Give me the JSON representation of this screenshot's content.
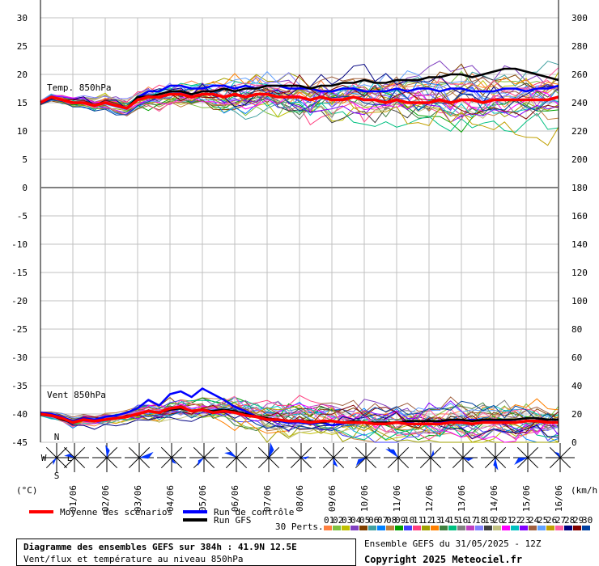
{
  "chart_data": {
    "type": "line",
    "location": "Diagramme des ensembles GEFS sur 384h : 41.9N 12.5E",
    "description": "Vent/flux et température au niveau 850hPa",
    "run": "Ensemble GEFS du 31/05/2025 - 12Z",
    "copyright": "Copyright 2025 Meteociel.fr",
    "x_labels": [
      "01/06",
      "02/06",
      "03/06",
      "04/06",
      "05/06",
      "06/06",
      "07/06",
      "08/06",
      "09/06",
      "10/06",
      "11/06",
      "12/06",
      "13/06",
      "14/06",
      "15/06",
      "16/06"
    ],
    "left_unit": "(°C)",
    "right_unit": "(km/h)",
    "left_ticks": [
      "30",
      "25",
      "20",
      "15",
      "10",
      "5",
      "0",
      "-5",
      "-10",
      "-15",
      "-20",
      "-25",
      "-30",
      "-35",
      "-40",
      "-45"
    ],
    "right_ticks": [
      "300",
      "280",
      "260",
      "240",
      "220",
      "200",
      "180",
      "160",
      "140",
      "120",
      "100",
      "80",
      "60",
      "40",
      "20",
      "0"
    ],
    "temp_panel": {
      "label": "Temp. 850hPa",
      "mean": [
        15,
        16,
        15.5,
        15,
        15,
        14.5,
        15,
        14.5,
        14,
        15.5,
        16,
        16,
        16.5,
        16.5,
        16,
        16.5,
        16.5,
        16,
        16.5,
        16,
        16.5,
        16.5,
        16,
        16,
        16,
        15.5,
        16,
        15.5,
        15.5,
        16,
        15.5,
        15.5,
        15,
        15.5,
        15,
        15,
        15,
        15.5,
        15,
        15.5,
        15.5,
        15,
        15.5,
        15.5,
        15.5,
        15.5,
        15.5,
        15.5,
        16
      ],
      "control": [
        15,
        16,
        15.5,
        15,
        15,
        14.5,
        15,
        14.5,
        14,
        16,
        17,
        17,
        18,
        18,
        17.5,
        17.5,
        18,
        18,
        17.5,
        18,
        17.5,
        18,
        18,
        17.5,
        17.5,
        17.5,
        17,
        17,
        17.5,
        17.5,
        17,
        17,
        17,
        17.5,
        17,
        17.5,
        17.5,
        17,
        17.5,
        17.5,
        17,
        17,
        17,
        17.5,
        17.5,
        17,
        17.5,
        17.5,
        18
      ],
      "gfs": [
        15,
        16,
        15.5,
        15,
        15,
        14.5,
        15,
        14.5,
        14,
        16,
        16,
        16.5,
        17,
        17,
        16.5,
        17,
        17,
        17.5,
        17,
        17.5,
        17.5,
        18,
        18,
        18,
        18,
        17.5,
        18,
        18,
        18.5,
        18.5,
        19,
        18.5,
        18.5,
        19,
        19,
        19,
        19.5,
        19.5,
        20,
        20,
        19.5,
        20,
        20.5,
        21,
        21,
        20.5,
        20,
        19.5,
        19
      ]
    },
    "wind_panel": {
      "label": "Vent 850hPa",
      "mean": [
        20,
        19,
        17,
        14,
        16,
        15,
        16,
        17,
        18,
        20,
        22,
        21,
        24,
        25,
        22,
        23,
        21,
        22,
        21,
        19,
        18,
        16,
        16,
        15,
        15,
        14,
        15,
        15,
        14,
        14,
        14,
        13,
        13,
        14,
        13,
        13,
        13,
        13,
        14,
        14,
        13,
        14,
        14,
        14,
        14,
        15,
        15,
        14,
        14
      ],
      "control": [
        21,
        20,
        18,
        15,
        17,
        16,
        18,
        19,
        21,
        24,
        30,
        26,
        34,
        36,
        32,
        38,
        34,
        30,
        25,
        22,
        18,
        16,
        15,
        14,
        14,
        13,
        14,
        12,
        13,
        15,
        14,
        13,
        13,
        14,
        14,
        13,
        13,
        14,
        15,
        15,
        16,
        15,
        15,
        15,
        16,
        17,
        17,
        16,
        16
      ],
      "gfs": [
        20,
        19,
        16,
        14,
        16,
        15,
        16,
        17,
        18,
        20,
        22,
        21,
        23,
        24,
        22,
        23,
        22,
        23,
        22,
        20,
        18,
        17,
        16,
        15,
        15,
        15,
        14,
        15,
        14,
        15,
        14,
        14,
        14,
        14,
        15,
        15,
        15,
        15,
        16,
        16,
        15,
        16,
        16,
        16,
        16,
        17,
        17,
        16,
        16
      ]
    },
    "wind_roses": [
      {
        "date": "31/05",
        "compass": [
          "N",
          "W",
          "E",
          "S"
        ]
      },
      {
        "date": "01/06"
      },
      {
        "date": "02/06"
      },
      {
        "date": "03/06"
      },
      {
        "date": "04/06"
      },
      {
        "date": "05/06"
      },
      {
        "date": "06/06"
      },
      {
        "date": "07/06"
      },
      {
        "date": "08/06"
      },
      {
        "date": "09/06"
      },
      {
        "date": "10/06"
      },
      {
        "date": "11/06"
      },
      {
        "date": "12/06"
      },
      {
        "date": "13/06"
      },
      {
        "date": "14/06"
      },
      {
        "date": "15/06"
      },
      {
        "date": "16/06"
      }
    ],
    "legend": [
      {
        "name": "Moyenne des scénarios",
        "color": "#ff0000"
      },
      {
        "name": "Run de contrôle",
        "color": "#0000ff"
      },
      {
        "name": "Run GFS",
        "color": "#000000"
      }
    ],
    "perts_label": "30 Perts.",
    "perts": [
      "01",
      "02",
      "03",
      "04",
      "05",
      "06",
      "07",
      "08",
      "09",
      "10",
      "11",
      "12",
      "13",
      "14",
      "15",
      "16",
      "17",
      "18",
      "19",
      "20",
      "21",
      "22",
      "23",
      "24",
      "25",
      "26",
      "27",
      "28",
      "29",
      "30"
    ],
    "pert_colors": [
      "#ff8040",
      "#80c040",
      "#c0c000",
      "#8040c0",
      "#804000",
      "#40a0a0",
      "#0080ff",
      "#c08040",
      "#00a000",
      "#4040ff",
      "#ff4080",
      "#a0a000",
      "#ff8000",
      "#408040",
      "#00c080",
      "#808080",
      "#c040c0",
      "#8080ff",
      "#404040",
      "#c0c080",
      "#ff00ff",
      "#00c0c0",
      "#8000ff",
      "#a06040",
      "#60a0ff",
      "#c0a000",
      "#ff60a0",
      "#000080",
      "#800000",
      "#0040a0"
    ]
  }
}
